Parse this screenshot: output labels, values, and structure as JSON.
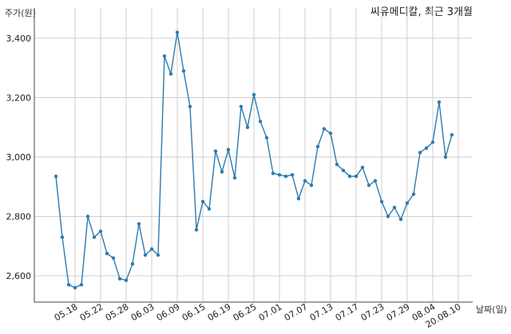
{
  "chart_data": {
    "type": "line",
    "title": "씨유메디칼, 최근 3개월",
    "ylabel": "주가(원)",
    "xlabel": "날짜(일)",
    "ylim": [
      2510,
      3470
    ],
    "yticks": [
      2600,
      2800,
      3000,
      3200,
      3400
    ],
    "ytick_labels": [
      "2,600",
      "2,800",
      "3,000",
      "3,200",
      "3,400"
    ],
    "xtick_labels": [
      {
        "label": "05.18",
        "index": 3
      },
      {
        "label": "05.22",
        "index": 7
      },
      {
        "label": "05.28",
        "index": 11
      },
      {
        "label": "06.03",
        "index": 15
      },
      {
        "label": "06.09",
        "index": 19
      },
      {
        "label": "06.15",
        "index": 23
      },
      {
        "label": "06.19",
        "index": 27
      },
      {
        "label": "06.25",
        "index": 31
      },
      {
        "label": "07.01",
        "index": 35
      },
      {
        "label": "07.07",
        "index": 39
      },
      {
        "label": "07.13",
        "index": 43
      },
      {
        "label": "07.17",
        "index": 47
      },
      {
        "label": "07.23",
        "index": 51
      },
      {
        "label": "07.29",
        "index": 55
      },
      {
        "label": "08.04",
        "index": 59
      },
      {
        "label": "20.08.10",
        "index": 63
      }
    ],
    "grid": true,
    "line_color": "#2e7bb0",
    "values": [
      2935,
      2730,
      2570,
      2560,
      2570,
      2800,
      2730,
      2750,
      2675,
      2660,
      2590,
      2585,
      2640,
      2775,
      2670,
      2690,
      2670,
      3340,
      3280,
      3420,
      3290,
      3170,
      2755,
      2850,
      2825,
      3020,
      2950,
      3025,
      2930,
      3170,
      3100,
      3210,
      3120,
      3065,
      2945,
      2940,
      2935,
      2940,
      2860,
      2920,
      2905,
      3035,
      3095,
      3080,
      2975,
      2955,
      2935,
      2935,
      2965,
      2905,
      2920,
      2850,
      2800,
      2830,
      2790,
      2845,
      2875,
      3015,
      3030,
      3050,
      3185,
      3000,
      3075
    ]
  }
}
